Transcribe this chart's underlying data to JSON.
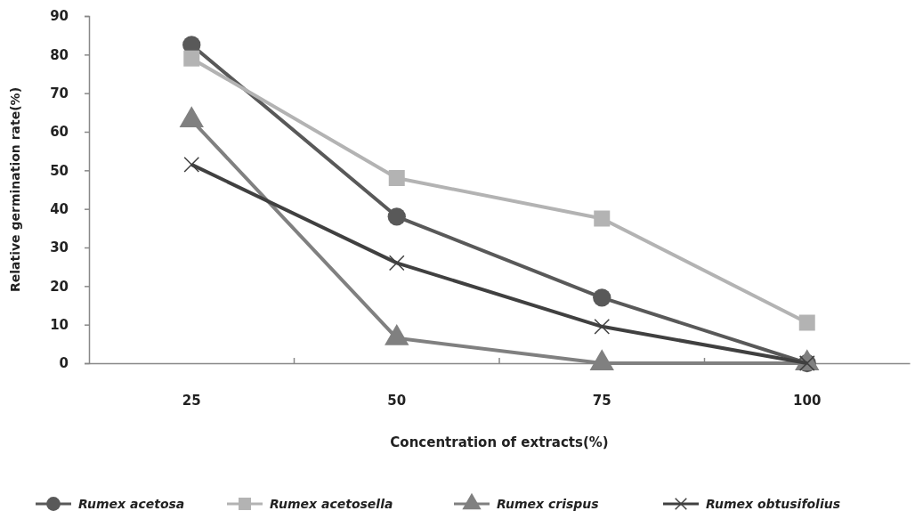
{
  "chart_data": {
    "type": "line",
    "xlabel": "Concentration of extracts(%)",
    "ylabel": "Relative germination rate(%)",
    "categories": [
      "25",
      "50",
      "75",
      "100"
    ],
    "series": [
      {
        "name": "Rumex acetosa",
        "color": "#595959",
        "marker": "circle",
        "values": [
          82.5,
          38,
          17,
          0
        ]
      },
      {
        "name": "Rumex acetosella",
        "color": "#b3b3b3",
        "marker": "square",
        "values": [
          79,
          48,
          37.5,
          10.5
        ]
      },
      {
        "name": "Rumex crispus",
        "color": "#808080",
        "marker": "triangle",
        "values": [
          63,
          6.5,
          0,
          0
        ]
      },
      {
        "name": "Rumex obtusifolius",
        "color": "#404040",
        "marker": "cross",
        "values": [
          51.5,
          26,
          9.5,
          0
        ]
      }
    ],
    "ylim": [
      0,
      90
    ],
    "yticks": [
      0,
      10,
      20,
      30,
      40,
      50,
      60,
      70,
      80,
      90
    ],
    "grid": false,
    "legend": "bottom"
  }
}
